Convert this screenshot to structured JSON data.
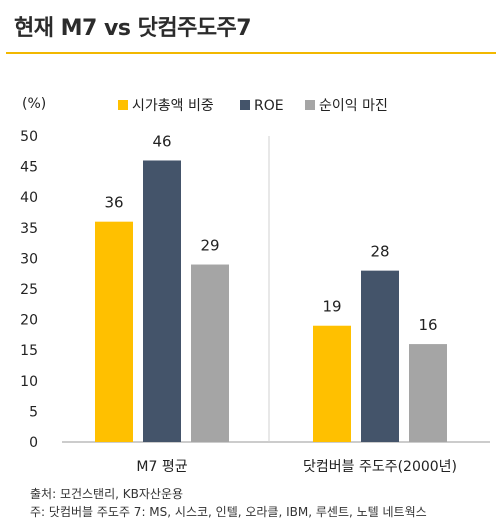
{
  "title": "현재 M7 vs 닷컴주도주7",
  "source": "출처: 모건스탠리, KB자산운용",
  "note": "주: 닷컴버블 주도주 7: MS, 시스코, 인텔, 오라클, IBM, 루센트, 노텔 네트웍스",
  "colors": {
    "accent": "#f2b800"
  },
  "chart_data": {
    "type": "bar",
    "categories": [
      "M7 평균",
      "닷컴버블 주도주(2000년)"
    ],
    "series": [
      {
        "name": "시가총액 비중",
        "color": "#ffc000",
        "values": [
          36,
          19
        ]
      },
      {
        "name": "ROE",
        "color": "#44546a",
        "values": [
          46,
          28
        ]
      },
      {
        "name": "순이익 마진",
        "color": "#a5a5a5",
        "values": [
          29,
          16
        ]
      }
    ],
    "ylabel": "(%)",
    "ylim": [
      0,
      50
    ],
    "yticks": [
      0,
      5,
      10,
      15,
      20,
      25,
      30,
      35,
      40,
      45,
      50
    ],
    "grid": false,
    "legend": "top"
  }
}
